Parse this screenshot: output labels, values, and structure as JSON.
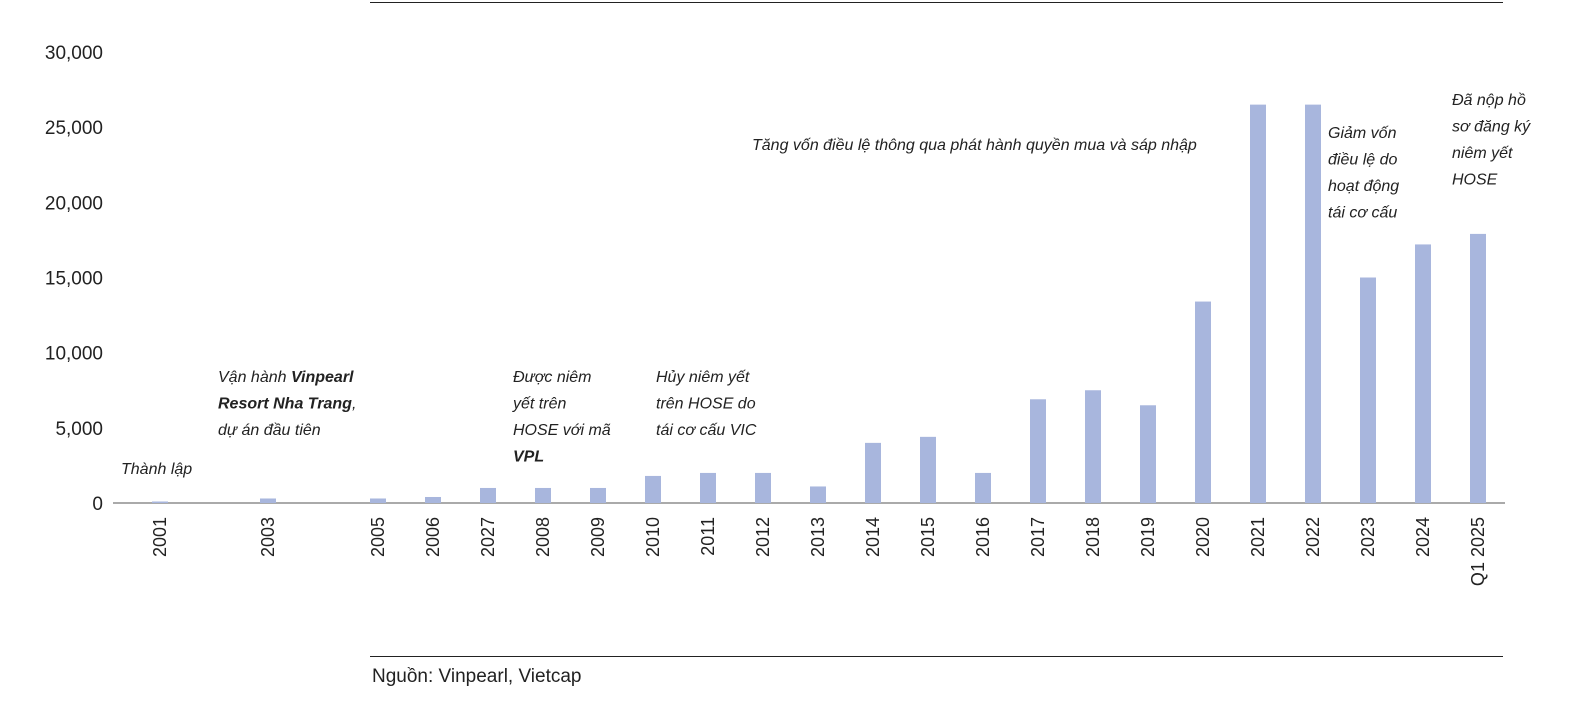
{
  "chart_data": {
    "type": "bar",
    "categories": [
      "2001",
      "2003",
      "2005",
      "2006",
      "2027",
      "2008",
      "2009",
      "2010",
      "2011",
      "2012",
      "2013",
      "2014",
      "2015",
      "2016",
      "2017",
      "2018",
      "2019",
      "2020",
      "2021",
      "2022",
      "2023",
      "2024",
      "Q1 2025"
    ],
    "values": [
      100,
      300,
      300,
      400,
      1000,
      1000,
      1000,
      1800,
      2000,
      2000,
      1100,
      4000,
      4400,
      2000,
      6900,
      7500,
      6500,
      13400,
      26500,
      26500,
      15000,
      17200,
      17900
    ],
    "ylim": [
      0,
      30000
    ],
    "yticks": [
      "0",
      "5,000",
      "10,000",
      "15,000",
      "20,000",
      "25,000",
      "30,000"
    ],
    "bar_color": "#a8b6dd",
    "grid": false,
    "annotations": [
      {
        "category": "2001",
        "lines": [
          [
            {
              "t": "Thành lập"
            }
          ]
        ]
      },
      {
        "category": "2003",
        "lines": [
          [
            {
              "t": "Vận hành "
            },
            {
              "t": "Vinpearl",
              "b": true
            }
          ],
          [
            {
              "t": "Resort Nha Trang",
              "b": true
            },
            {
              "t": ","
            }
          ],
          [
            {
              "t": "dự án đầu tiên"
            }
          ]
        ]
      },
      {
        "category": "2008",
        "lines": [
          [
            {
              "t": "Được    niêm"
            }
          ],
          [
            {
              "t": "yết       trên"
            }
          ],
          [
            {
              "t": "HOSE với mã"
            }
          ],
          [
            {
              "t": "VPL",
              "b": true
            }
          ]
        ]
      },
      {
        "category": "2011",
        "lines": [
          [
            {
              "t": "Hủy niêm yết"
            }
          ],
          [
            {
              "t": "trên HOSE do"
            }
          ],
          [
            {
              "t": "tái cơ cấu VIC"
            }
          ]
        ]
      },
      {
        "category": "2021",
        "lines": [
          [
            {
              "t": "Tăng vốn điều lệ thông qua phát hành quyền mua và sáp nhập"
            }
          ]
        ]
      },
      {
        "category": "2023",
        "lines": [
          [
            {
              "t": "Giảm     vốn"
            }
          ],
          [
            {
              "t": "điều lệ do"
            }
          ],
          [
            {
              "t": "hoạt   động"
            }
          ],
          [
            {
              "t": "tái cơ cấu"
            }
          ]
        ]
      },
      {
        "category": "Q1 2025",
        "lines": [
          [
            {
              "t": "Đã  nộp  hồ"
            }
          ],
          [
            {
              "t": "sơ đăng ký"
            }
          ],
          [
            {
              "t": "niêm    yết"
            }
          ],
          [
            {
              "t": "HOSE"
            }
          ]
        ]
      }
    ]
  },
  "source": "Nguồn: Vinpearl, Vietcap"
}
